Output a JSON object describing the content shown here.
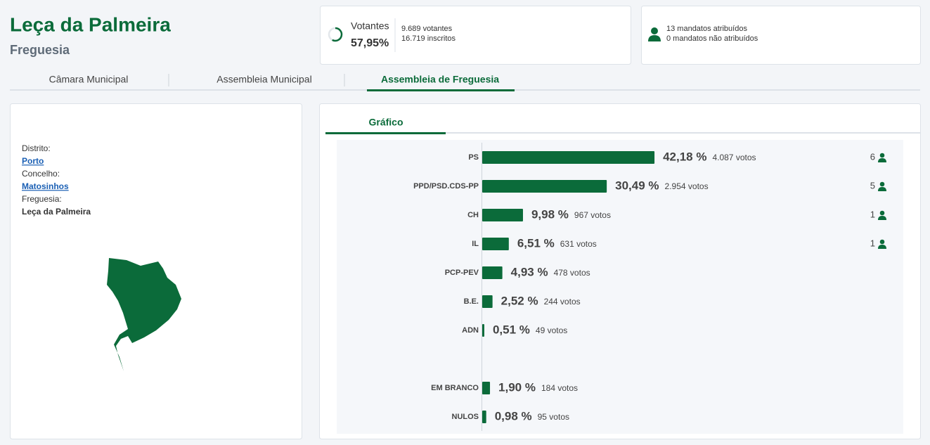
{
  "header": {
    "title": "Leça da Palmeira",
    "subtitle": "Freguesia"
  },
  "turnout": {
    "label": "Votantes",
    "percent": 57.95,
    "percent_label": "57,95%",
    "voters": "9.689 votantes",
    "registered": "16.719 inscritos"
  },
  "mandates": {
    "assigned": "13 mandatos atribuídos",
    "unassigned": "0 mandatos não atribuídos"
  },
  "tabs": [
    "Câmara Municipal",
    "Assembleia Municipal",
    "Assembleia de Freguesia"
  ],
  "location": {
    "district_label": "Distrito:",
    "district": "Porto",
    "municipality_label": "Concelho:",
    "municipality": "Matosinhos",
    "parish_label": "Freguesia:",
    "parish": "Leça da Palmeira"
  },
  "results": {
    "tab": "Gráfico",
    "color": "#0b6b3a",
    "parties": {
      "names": [
        "PS",
        "PPD/PSD.CDS-PP",
        "CH",
        "IL",
        "PCP-PEV",
        "B.E.",
        "ADN"
      ],
      "values": [
        42.18,
        30.49,
        9.98,
        6.51,
        4.93,
        2.52,
        0.51
      ],
      "value_labels": [
        "42,18 %",
        "30,49 %",
        "9,98 %",
        "6,51 %",
        "4,93 %",
        "2,52 %",
        "0,51 %"
      ],
      "votes": [
        "4.087 votos",
        "2.954 votos",
        "967 votos",
        "631 votos",
        "478 votos",
        "244 votos",
        "49 votos"
      ],
      "seats": [
        6,
        5,
        1,
        1,
        null,
        null,
        null
      ]
    },
    "other": {
      "names": [
        "EM BRANCO",
        "NULOS"
      ],
      "values": [
        1.9,
        0.98
      ],
      "value_labels": [
        "1,90 %",
        "0,98 %"
      ],
      "votes": [
        "184 votos",
        "95 votos"
      ]
    }
  }
}
